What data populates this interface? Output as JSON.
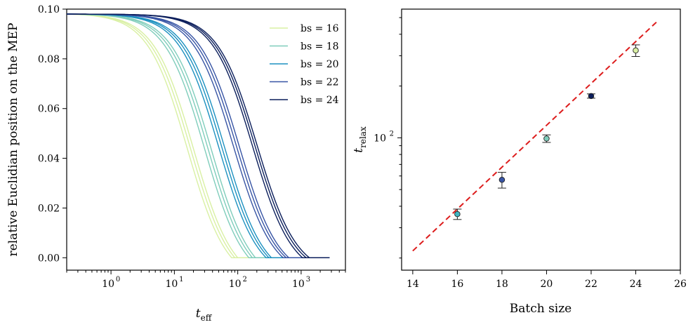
{
  "chart_data": [
    {
      "type": "line",
      "xscale": "log",
      "xlabel": "t",
      "xlabel_sub": "eff",
      "ylabel": "relative Euclidian position on the MEP",
      "xlim": [
        0.2,
        5000
      ],
      "ylim": [
        -0.005,
        0.1
      ],
      "xticks": [
        1,
        10,
        100,
        1000
      ],
      "xtick_labels": [
        "10",
        "10",
        "10",
        "10"
      ],
      "xtick_exponents": [
        "0",
        "1",
        "2",
        "3"
      ],
      "yticks": [
        0.0,
        0.02,
        0.04,
        0.06,
        0.08,
        0.1
      ],
      "ytick_labels": [
        "0.00",
        "0.02",
        "0.04",
        "0.06",
        "0.08",
        "0.10"
      ],
      "legend_position": "top-right",
      "series": [
        {
          "name": "bs = 16",
          "color": "#d9f0a3",
          "t_half": [
            16,
            18,
            20
          ],
          "t_end": [
            80,
            90,
            100
          ]
        },
        {
          "name": "bs = 18",
          "color": "#7fcdbb",
          "t_half": [
            30,
            34,
            38
          ],
          "t_end": [
            150,
            170,
            190
          ]
        },
        {
          "name": "bs = 20",
          "color": "#1d91c0",
          "t_half": [
            50,
            56,
            62
          ],
          "t_end": [
            280,
            310,
            340
          ]
        },
        {
          "name": "bs = 22",
          "color": "#3855a5",
          "t_half": [
            85,
            95,
            105
          ],
          "t_end": [
            520,
            580,
            640
          ]
        },
        {
          "name": "bs = 24",
          "color": "#0c1f5c",
          "t_half": [
            170,
            185,
            200
          ],
          "t_end": [
            1050,
            1200,
            1350
          ]
        }
      ],
      "y_start": 0.098,
      "x_end_flat": 2800
    },
    {
      "type": "scatter",
      "yscale": "log",
      "xlabel": "Batch size",
      "ylabel": "t",
      "ylabel_sub": "relax",
      "xlim": [
        13.5,
        26
      ],
      "ylim": [
        17,
        560
      ],
      "xticks": [
        14,
        16,
        18,
        20,
        22,
        24,
        26
      ],
      "xtick_labels": [
        "14",
        "16",
        "18",
        "20",
        "22",
        "24",
        "26"
      ],
      "ytick_major": 100,
      "ytick_label": "10",
      "ytick_exponent": "2",
      "points": [
        {
          "x": 16,
          "y": 36,
          "err_low": 2.5,
          "err_high": 2.5,
          "color": "#41b6c4"
        },
        {
          "x": 18,
          "y": 57,
          "err_low": 6,
          "err_high": 6,
          "color": "#3855a5"
        },
        {
          "x": 20,
          "y": 99,
          "err_low": 5,
          "err_high": 5,
          "color": "#7fcdbb"
        },
        {
          "x": 22,
          "y": 175,
          "err_low": 5,
          "err_high": 5,
          "color": "#0c1f5c"
        },
        {
          "x": 24,
          "y": 322,
          "err_low": 25,
          "err_high": 25,
          "color": "#d9f0a3"
        }
      ],
      "fit_line": {
        "x": [
          14,
          25
        ],
        "y": [
          22,
          480
        ],
        "color": "#dd1c1c"
      }
    }
  ]
}
